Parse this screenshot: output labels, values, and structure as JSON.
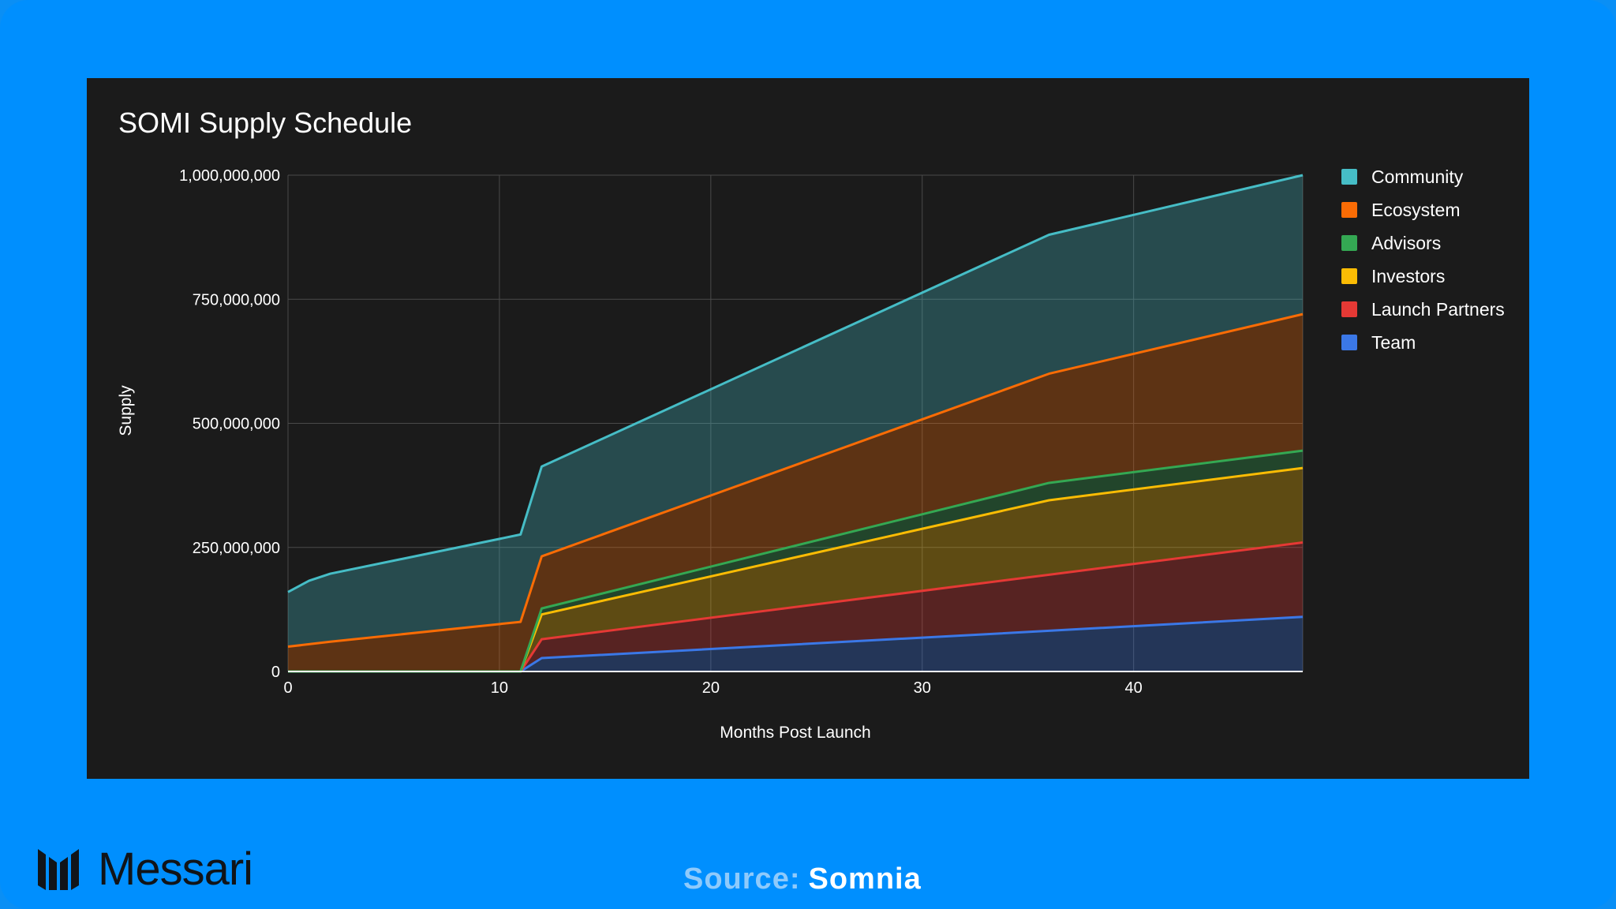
{
  "chart_data": {
    "type": "area",
    "stacked": true,
    "title": "SOMI Supply Schedule",
    "xlabel": "Months Post Launch",
    "ylabel": "Supply",
    "xlim": [
      0,
      48
    ],
    "ylim": [
      0,
      1000000000
    ],
    "x_ticks": [
      0,
      10,
      20,
      30,
      40
    ],
    "y_ticks": [
      0,
      250000000,
      500000000,
      750000000,
      1000000000
    ],
    "y_tick_labels": [
      "0",
      "250,000,000",
      "500,000,000",
      "750,000,000",
      "1,000,000,000"
    ],
    "x_tick_labels": [
      "0",
      "10",
      "20",
      "30",
      "40"
    ],
    "grid": true,
    "legend_position": "right",
    "x": [
      0,
      1,
      2,
      11,
      12,
      36,
      48
    ],
    "series": [
      {
        "name": "Team",
        "color": "#3b78e7",
        "cumulative": [
          0,
          0,
          0,
          0,
          27000000,
          82000000,
          110000000
        ]
      },
      {
        "name": "Launch Partners",
        "color": "#e53935",
        "cumulative": [
          0,
          0,
          0,
          0,
          65000000,
          195000000,
          260000000
        ]
      },
      {
        "name": "Investors",
        "color": "#fbbc04",
        "cumulative": [
          0,
          0,
          0,
          0,
          115000000,
          345000000,
          410000000
        ]
      },
      {
        "name": "Advisors",
        "color": "#34a853",
        "cumulative": [
          0,
          0,
          0,
          0,
          127000000,
          380000000,
          445000000
        ]
      },
      {
        "name": "Ecosystem",
        "color": "#fa6c05",
        "cumulative": [
          50000000,
          55000000,
          60000000,
          100000000,
          232000000,
          600000000,
          720000000
        ]
      },
      {
        "name": "Community",
        "color": "#46bdc6",
        "cumulative": [
          160000000,
          183000000,
          197000000,
          276000000,
          413000000,
          880000000,
          1000000000
        ]
      }
    ]
  },
  "legend": [
    {
      "label": "Community",
      "color": "#46bdc6"
    },
    {
      "label": "Ecosystem",
      "color": "#fa6c05"
    },
    {
      "label": "Advisors",
      "color": "#34a853"
    },
    {
      "label": "Investors",
      "color": "#fbbc04"
    },
    {
      "label": "Launch Partners",
      "color": "#e53935"
    },
    {
      "label": "Team",
      "color": "#3b78e7"
    }
  ],
  "brand": {
    "name": "Messari",
    "logo_icon": "messari-logo-icon"
  },
  "source": {
    "label": "Source:",
    "value": "Somnia"
  }
}
